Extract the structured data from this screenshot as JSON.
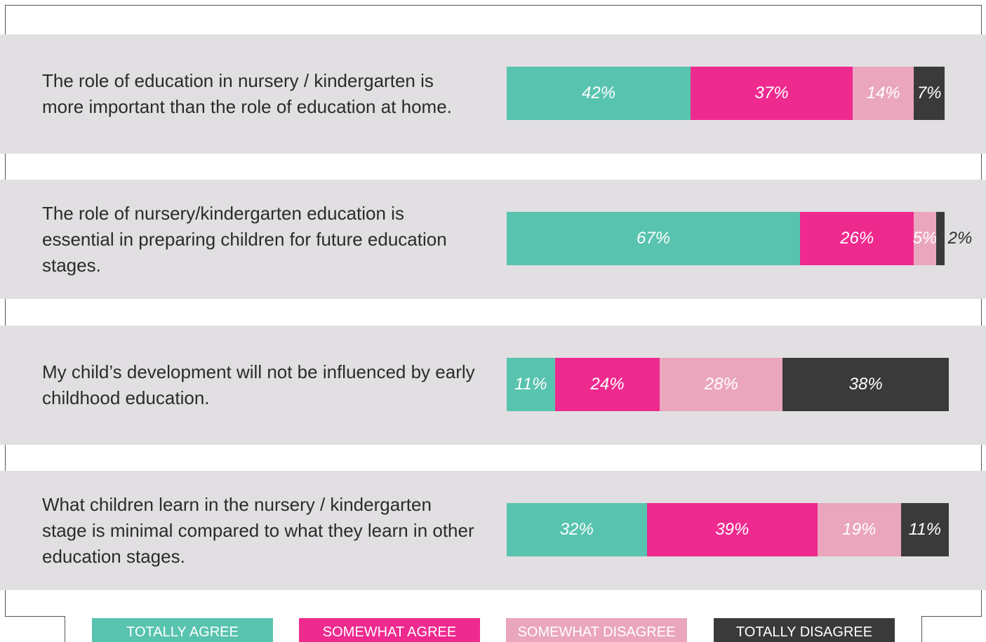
{
  "chart_data": {
    "type": "stacked-barh",
    "categories": [
      "The role of education in nursery / kindergarten is more important than the role of education at home.",
      "The role of nursery/kindergarten education is essential in preparing children for future education stages.",
      "My child’s development will not be influenced by early childhood education.",
      "What children learn in the nursery / kindergarten stage is minimal compared to what they learn in other education stages."
    ],
    "series": [
      {
        "name": "TOTALLY AGREE",
        "color": "#58c3ae",
        "values": [
          42,
          67,
          11,
          32
        ],
        "value_labels": [
          "42%",
          "67%",
          "11%",
          "32%"
        ]
      },
      {
        "name": "SOMEWHAT AGREE",
        "color": "#ee2a8f",
        "values": [
          37,
          26,
          24,
          39
        ],
        "value_labels": [
          "37%",
          "26%",
          "24%",
          "39%"
        ]
      },
      {
        "name": "SOMEWHAT DISAGREE",
        "color": "#eaa6bd",
        "values": [
          14,
          5,
          28,
          19
        ],
        "value_labels": [
          "14%",
          "5%",
          "28%",
          "19%"
        ]
      },
      {
        "name": "TOTALLY DISAGREE",
        "color": "#3a3a3a",
        "values": [
          7,
          2,
          38,
          11
        ],
        "value_labels": [
          "7%",
          "2%",
          "38%",
          "11%"
        ]
      }
    ],
    "xlim": [
      0,
      100
    ]
  }
}
